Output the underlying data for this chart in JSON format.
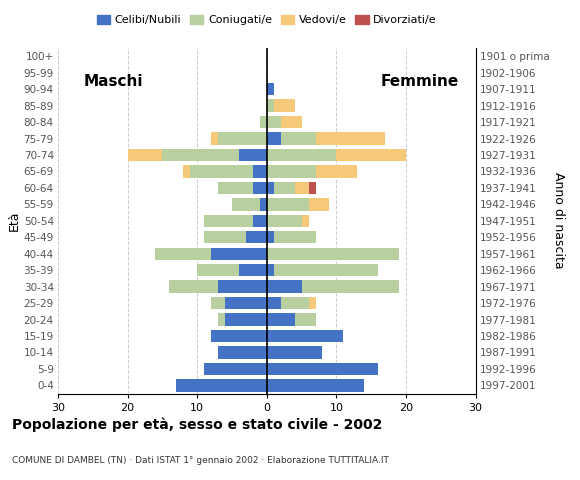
{
  "age_groups": [
    "0-4",
    "5-9",
    "10-14",
    "15-19",
    "20-24",
    "25-29",
    "30-34",
    "35-39",
    "40-44",
    "45-49",
    "50-54",
    "55-59",
    "60-64",
    "65-69",
    "70-74",
    "75-79",
    "80-84",
    "85-89",
    "90-94",
    "95-99",
    "100+"
  ],
  "birth_years": [
    "1997-2001",
    "1992-1996",
    "1987-1991",
    "1982-1986",
    "1977-1981",
    "1972-1976",
    "1967-1971",
    "1962-1966",
    "1957-1961",
    "1952-1956",
    "1947-1951",
    "1942-1946",
    "1937-1941",
    "1932-1936",
    "1927-1931",
    "1922-1926",
    "1917-1921",
    "1912-1916",
    "1907-1911",
    "1902-1906",
    "1901 o prima"
  ],
  "males": {
    "celibe": [
      13,
      9,
      7,
      8,
      6,
      6,
      7,
      4,
      8,
      3,
      2,
      1,
      2,
      2,
      4,
      0,
      0,
      0,
      0,
      0,
      0
    ],
    "coniugato": [
      0,
      0,
      0,
      0,
      1,
      2,
      7,
      6,
      8,
      6,
      7,
      4,
      5,
      9,
      11,
      7,
      1,
      0,
      0,
      0,
      0
    ],
    "vedovo": [
      0,
      0,
      0,
      0,
      0,
      0,
      0,
      0,
      0,
      0,
      0,
      0,
      0,
      1,
      5,
      1,
      0,
      0,
      0,
      0,
      0
    ],
    "divorziato": [
      0,
      0,
      0,
      0,
      0,
      0,
      0,
      0,
      0,
      0,
      0,
      0,
      0,
      0,
      0,
      0,
      0,
      0,
      0,
      0,
      0
    ]
  },
  "females": {
    "nubile": [
      14,
      16,
      8,
      11,
      4,
      2,
      5,
      1,
      0,
      1,
      0,
      0,
      1,
      0,
      0,
      2,
      0,
      0,
      1,
      0,
      0
    ],
    "coniugata": [
      0,
      0,
      0,
      0,
      3,
      4,
      14,
      15,
      19,
      6,
      5,
      6,
      3,
      7,
      10,
      5,
      2,
      1,
      0,
      0,
      0
    ],
    "vedova": [
      0,
      0,
      0,
      0,
      0,
      1,
      0,
      0,
      0,
      0,
      1,
      3,
      2,
      6,
      10,
      10,
      3,
      3,
      0,
      0,
      0
    ],
    "divorziata": [
      0,
      0,
      0,
      0,
      0,
      0,
      0,
      0,
      0,
      0,
      0,
      0,
      1,
      0,
      0,
      0,
      0,
      0,
      0,
      0,
      0
    ]
  },
  "colors": {
    "celibe_nubile": "#4472c4",
    "coniugato_a": "#b8cfa0",
    "vedovo_a": "#f5c87a",
    "divorziato_a": "#c0504d"
  },
  "xlim": 30,
  "title": "Popolazione per età, sesso e stato civile - 2002",
  "subtitle": "COMUNE DI DAMBEL (TN) · Dati ISTAT 1° gennaio 2002 · Elaborazione TUTTITALIA.IT",
  "ylabel_left": "Età",
  "ylabel_right": "Anno di nascita",
  "label_maschi": "Maschi",
  "label_femmine": "Femmine",
  "legend_labels": [
    "Celibi/Nubili",
    "Coniugati/e",
    "Vedovi/e",
    "Divorziati/e"
  ],
  "background_color": "#ffffff",
  "xtick_positions": [
    -30,
    -20,
    -10,
    0,
    10,
    20,
    30
  ]
}
